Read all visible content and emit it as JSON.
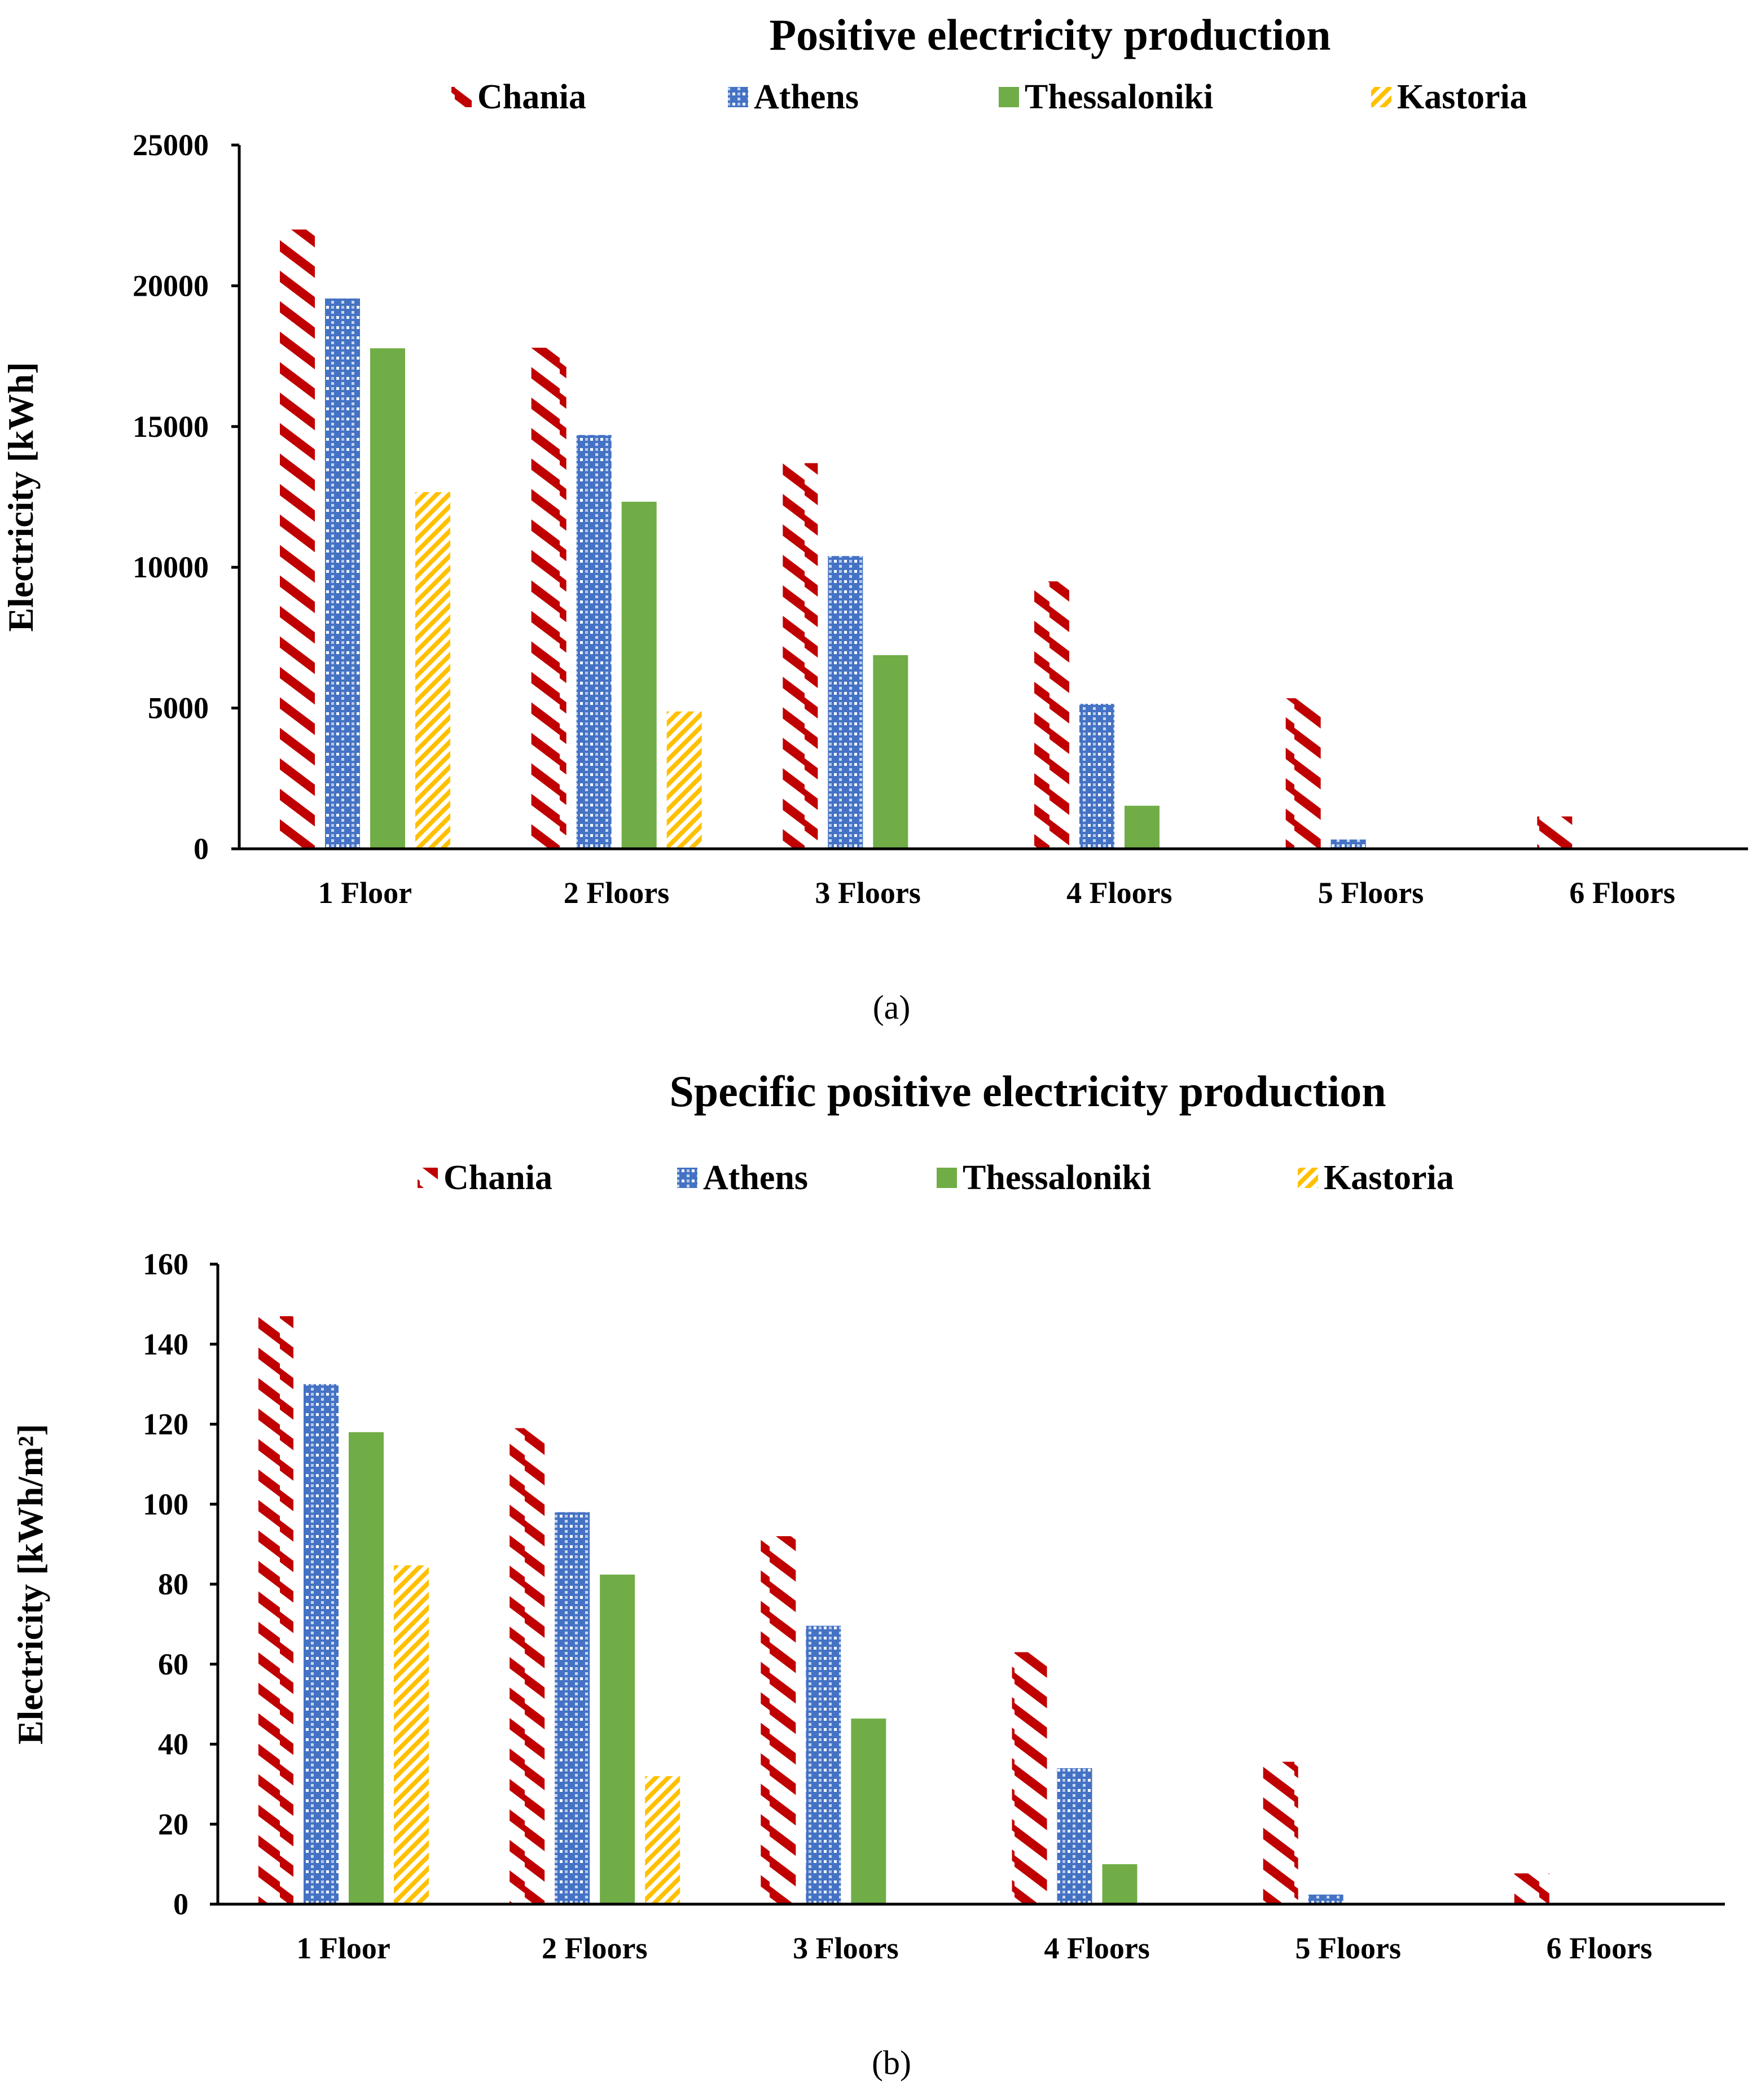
{
  "colors": {
    "Chania": "#C00000",
    "Athens": "#4472C4",
    "Thessaloniki": "#70AD47",
    "Kastoria": "#FFC000"
  },
  "chart_data": [
    {
      "type": "bar",
      "caption": "(a)",
      "title": "Positive electricity production",
      "xlabel": "",
      "ylabel": "Electricity [kWh]",
      "ylim": [
        0,
        25000
      ],
      "yticks": [
        "0",
        "5000",
        "10000",
        "15000",
        "20000",
        "25000"
      ],
      "legend_position": "top",
      "categories": [
        "1 Floor",
        "2 Floors",
        "3 Floors",
        "4 Floors",
        "5 Floors",
        "6 Floors"
      ],
      "series": [
        {
          "name": "Chania",
          "values": [
            22000,
            17800,
            13700,
            9500,
            5350,
            1150
          ]
        },
        {
          "name": "Athens",
          "values": [
            19550,
            14700,
            10400,
            5150,
            330,
            0
          ]
        },
        {
          "name": "Thessaloniki",
          "values": [
            17780,
            12330,
            6880,
            1530,
            0,
            0
          ]
        },
        {
          "name": "Kastoria",
          "values": [
            12670,
            4880,
            0,
            0,
            0,
            0
          ]
        }
      ]
    },
    {
      "type": "bar",
      "caption": "(b)",
      "title": "Specific positive electricity production",
      "xlabel": "",
      "ylabel": "Electricity [kWh/m²]",
      "ylim": [
        0,
        160
      ],
      "yticks": [
        "0",
        "20",
        "40",
        "60",
        "80",
        "100",
        "120",
        "140",
        "160"
      ],
      "legend_position": "top",
      "categories": [
        "1 Floor",
        "2 Floors",
        "3 Floors",
        "4 Floors",
        "5 Floors",
        "6 Floors"
      ],
      "series": [
        {
          "name": "Chania",
          "values": [
            147,
            119,
            92,
            63,
            35.6,
            7.7
          ]
        },
        {
          "name": "Athens",
          "values": [
            130,
            98,
            69.6,
            34,
            2.4,
            0
          ]
        },
        {
          "name": "Thessaloniki",
          "values": [
            118,
            82.4,
            46.4,
            10,
            0,
            0
          ]
        },
        {
          "name": "Kastoria",
          "values": [
            84.7,
            32,
            0,
            0,
            0,
            0
          ]
        }
      ]
    }
  ]
}
